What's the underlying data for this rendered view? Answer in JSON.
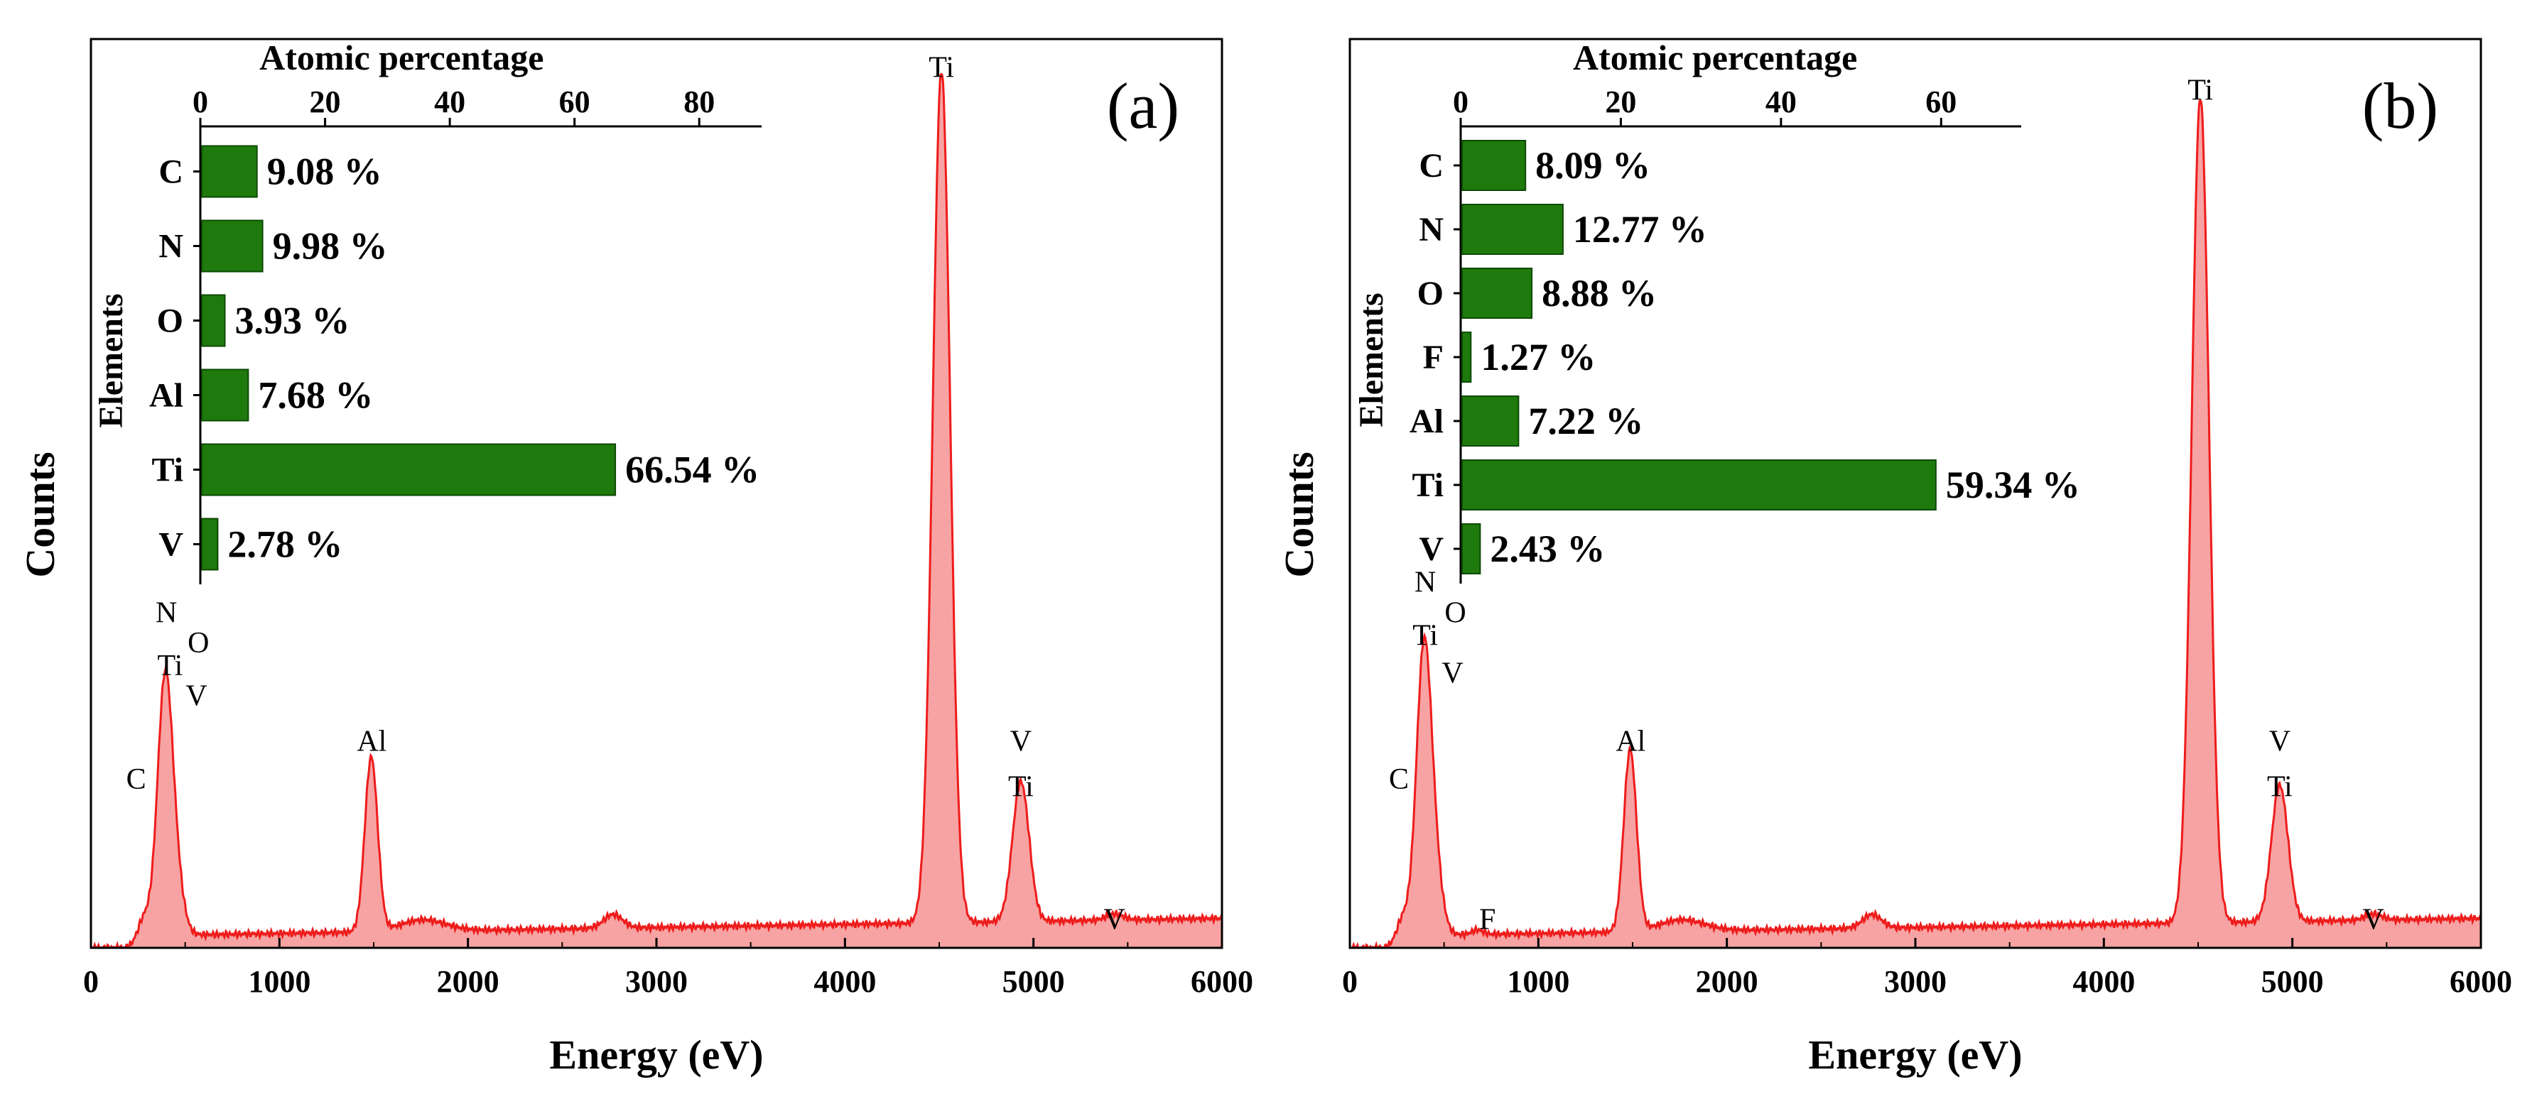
{
  "colors": {
    "spectrum_fill": "#f7a3a3",
    "spectrum_line": "#ee1c1c",
    "bar_fill": "#1e7a0c",
    "axis": "#000000"
  },
  "chart_data": [
    {
      "type": "area",
      "panel_label": "(a)",
      "xlabel": "Energy (eV)",
      "ylabel": "Counts",
      "xlim": [
        0,
        6000
      ],
      "ylim": [
        0,
        1.2
      ],
      "x_ticks": [
        0,
        1000,
        2000,
        3000,
        4000,
        5000,
        6000
      ],
      "x_tick_labels": [
        "0",
        "1000",
        "2000",
        "3000",
        "4000",
        "5000",
        "6000"
      ],
      "background": {
        "start_x": 250,
        "base": 0.015,
        "slope_per_keV": 0.004
      },
      "peaks": [
        {
          "center": 280,
          "height": 0.035,
          "sigma": 35
        },
        {
          "center": 392,
          "height": 0.33,
          "sigma": 40
        },
        {
          "center": 452,
          "height": 0.06,
          "sigma": 40
        },
        {
          "center": 1487,
          "height": 0.23,
          "sigma": 34
        },
        {
          "center": 1760,
          "height": 0.015,
          "sigma": 120
        },
        {
          "center": 2770,
          "height": 0.018,
          "sigma": 50
        },
        {
          "center": 4512,
          "height": 1.125,
          "sigma": 46
        },
        {
          "center": 4933,
          "height": 0.185,
          "sigma": 44
        },
        {
          "center": 5430,
          "height": 0.008,
          "sigma": 45
        }
      ],
      "peak_labels": [
        {
          "text": "C",
          "x": 240,
          "y": 0.21
        },
        {
          "text": "N",
          "x": 400,
          "y": 0.43
        },
        {
          "text": "O",
          "x": 570,
          "y": 0.39
        },
        {
          "text": "Ti",
          "x": 420,
          "y": 0.36
        },
        {
          "text": "V",
          "x": 560,
          "y": 0.32
        },
        {
          "text": "Al",
          "x": 1490,
          "y": 0.26
        },
        {
          "text": "Ti",
          "x": 4512,
          "y": 1.15
        },
        {
          "text": "V",
          "x": 4933,
          "y": 0.26
        },
        {
          "text": "Ti",
          "x": 4933,
          "y": 0.2
        },
        {
          "text": "V",
          "x": 5430,
          "y": 0.025
        }
      ],
      "inset": {
        "type": "bar",
        "orientation": "horizontal",
        "title": "Atomic percentage",
        "ylabel": "Elements",
        "xlim": [
          0,
          90
        ],
        "x_ticks": [
          0,
          20,
          40,
          60,
          80
        ],
        "x_tick_labels": [
          "0",
          "20",
          "40",
          "60",
          "80"
        ],
        "categories": [
          "C",
          "N",
          "O",
          "Al",
          "Ti",
          "V"
        ],
        "values": [
          9.08,
          9.98,
          3.93,
          7.68,
          66.54,
          2.78
        ],
        "value_labels": [
          "9.08 %",
          "9.98 %",
          "3.93 %",
          "7.68 %",
          "66.54 %",
          "2.78 %"
        ]
      }
    },
    {
      "type": "area",
      "panel_label": "(b)",
      "xlabel": "Energy (eV)",
      "ylabel": "Counts",
      "xlim": [
        0,
        6000
      ],
      "ylim": [
        0,
        1.2
      ],
      "x_ticks": [
        0,
        1000,
        2000,
        3000,
        4000,
        5000,
        6000
      ],
      "x_tick_labels": [
        "0",
        "1000",
        "2000",
        "3000",
        "4000",
        "5000",
        "6000"
      ],
      "background": {
        "start_x": 250,
        "base": 0.015,
        "slope_per_keV": 0.004
      },
      "peaks": [
        {
          "center": 280,
          "height": 0.035,
          "sigma": 35
        },
        {
          "center": 392,
          "height": 0.37,
          "sigma": 40
        },
        {
          "center": 452,
          "height": 0.07,
          "sigma": 40
        },
        {
          "center": 677,
          "height": 0.006,
          "sigma": 30
        },
        {
          "center": 1487,
          "height": 0.24,
          "sigma": 34
        },
        {
          "center": 1760,
          "height": 0.015,
          "sigma": 120
        },
        {
          "center": 2770,
          "height": 0.018,
          "sigma": 50
        },
        {
          "center": 4512,
          "height": 1.09,
          "sigma": 46
        },
        {
          "center": 4933,
          "height": 0.18,
          "sigma": 44
        },
        {
          "center": 5430,
          "height": 0.008,
          "sigma": 45
        }
      ],
      "peak_labels": [
        {
          "text": "C",
          "x": 260,
          "y": 0.21
        },
        {
          "text": "N",
          "x": 400,
          "y": 0.47
        },
        {
          "text": "O",
          "x": 560,
          "y": 0.43
        },
        {
          "text": "Ti",
          "x": 400,
          "y": 0.4
        },
        {
          "text": "V",
          "x": 545,
          "y": 0.35
        },
        {
          "text": "F",
          "x": 730,
          "y": 0.025
        },
        {
          "text": "Al",
          "x": 1490,
          "y": 0.26
        },
        {
          "text": "Ti",
          "x": 4512,
          "y": 1.12
        },
        {
          "text": "V",
          "x": 4933,
          "y": 0.26
        },
        {
          "text": "Ti",
          "x": 4933,
          "y": 0.2
        },
        {
          "text": "V",
          "x": 5430,
          "y": 0.025
        }
      ],
      "inset": {
        "type": "bar",
        "orientation": "horizontal",
        "title": "Atomic percentage",
        "ylabel": "Elements",
        "xlim": [
          0,
          70
        ],
        "x_ticks": [
          0,
          20,
          40,
          60
        ],
        "x_tick_labels": [
          "0",
          "20",
          "40",
          "60"
        ],
        "categories": [
          "C",
          "N",
          "O",
          "F",
          "Al",
          "Ti",
          "V"
        ],
        "values": [
          8.09,
          12.77,
          8.88,
          1.27,
          7.22,
          59.34,
          2.43
        ],
        "value_labels": [
          "8.09 %",
          "12.77 %",
          "8.88 %",
          "1.27 %",
          "7.22 %",
          "59.34 %",
          "2.43 %"
        ]
      }
    }
  ]
}
